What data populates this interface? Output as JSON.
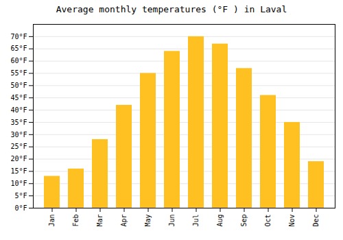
{
  "chart_data": {
    "type": "bar",
    "title": "Average monthly temperatures (°F ) in Laval",
    "categories": [
      "Jan",
      "Feb",
      "Mar",
      "Apr",
      "May",
      "Jun",
      "Jul",
      "Aug",
      "Sep",
      "Oct",
      "Nov",
      "Dec"
    ],
    "values": [
      13,
      16,
      28,
      42,
      55,
      64,
      70,
      67,
      57,
      46,
      35,
      19
    ],
    "color": "#FFC021",
    "ylim": [
      0,
      75
    ],
    "yticks": [
      {
        "value": 0,
        "label": "0°F"
      },
      {
        "value": 5,
        "label": "5°F"
      },
      {
        "value": 10,
        "label": "10°F"
      },
      {
        "value": 15,
        "label": "15°F"
      },
      {
        "value": 20,
        "label": "20°F"
      },
      {
        "value": 25,
        "label": "25°F"
      },
      {
        "value": 30,
        "label": "30°F"
      },
      {
        "value": 35,
        "label": "35°F"
      },
      {
        "value": 40,
        "label": "40°F"
      },
      {
        "value": 45,
        "label": "45°F"
      },
      {
        "value": 50,
        "label": "50°F"
      },
      {
        "value": 55,
        "label": "55°F"
      },
      {
        "value": 60,
        "label": "60°F"
      },
      {
        "value": 65,
        "label": "65°F"
      },
      {
        "value": 70,
        "label": "70°F"
      }
    ],
    "grid": true
  }
}
